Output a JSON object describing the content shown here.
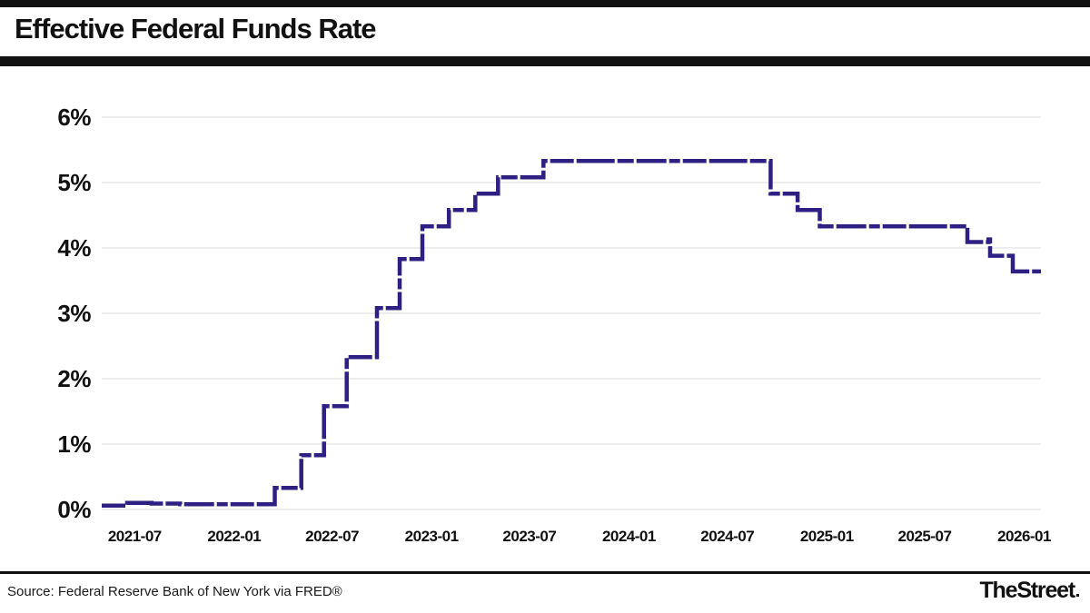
{
  "header": {
    "title": "Effective Federal Funds Rate"
  },
  "footer": {
    "source": "Source: Federal Reserve Bank of New York via FRED®",
    "brand": "TheStreet"
  },
  "chart_data": {
    "type": "line",
    "subtype": "step",
    "title": "Effective Federal Funds Rate",
    "xlabel": "",
    "ylabel": "",
    "unit": "%",
    "ylim": [
      0,
      6
    ],
    "grid": true,
    "legend": "none",
    "line_style": "dashed-thick",
    "colors": {
      "line": "#2d2082",
      "gridline": "#e7e7e7",
      "bars": "#111111",
      "text": "#111111"
    },
    "x_range": [
      "2021-05-01",
      "2026-02-01"
    ],
    "y_ticks": [
      {
        "value": 0,
        "label": "0%"
      },
      {
        "value": 1,
        "label": "1%"
      },
      {
        "value": 2,
        "label": "2%"
      },
      {
        "value": 3,
        "label": "3%"
      },
      {
        "value": 4,
        "label": "4%"
      },
      {
        "value": 5,
        "label": "5%"
      },
      {
        "value": 6,
        "label": "6%"
      }
    ],
    "x_ticks": [
      {
        "date": "2021-07-01",
        "label": "2021-07"
      },
      {
        "date": "2022-01-01",
        "label": "2022-01"
      },
      {
        "date": "2022-07-01",
        "label": "2022-07"
      },
      {
        "date": "2023-01-01",
        "label": "2023-01"
      },
      {
        "date": "2023-07-01",
        "label": "2023-07"
      },
      {
        "date": "2024-01-01",
        "label": "2024-01"
      },
      {
        "date": "2024-07-01",
        "label": "2024-07"
      },
      {
        "date": "2025-01-01",
        "label": "2025-01"
      },
      {
        "date": "2025-07-01",
        "label": "2025-07"
      },
      {
        "date": "2026-01-01",
        "label": "2026-01"
      }
    ],
    "series": [
      {
        "name": "Effective Federal Funds Rate",
        "color": "#2d2082",
        "points": [
          [
            "2021-05-01",
            0.06
          ],
          [
            "2021-06-17",
            0.1
          ],
          [
            "2021-08-01",
            0.09
          ],
          [
            "2021-09-23",
            0.08
          ],
          [
            "2022-03-17",
            0.33
          ],
          [
            "2022-05-05",
            0.83
          ],
          [
            "2022-06-16",
            1.58
          ],
          [
            "2022-07-28",
            2.33
          ],
          [
            "2022-09-22",
            3.08
          ],
          [
            "2022-11-03",
            3.83
          ],
          [
            "2022-12-15",
            4.33
          ],
          [
            "2023-02-02",
            4.58
          ],
          [
            "2023-03-23",
            4.83
          ],
          [
            "2023-05-04",
            5.08
          ],
          [
            "2023-07-27",
            5.33
          ],
          [
            "2024-09-19",
            4.83
          ],
          [
            "2024-11-08",
            4.58
          ],
          [
            "2024-12-19",
            4.33
          ],
          [
            "2025-09-18",
            4.09
          ],
          [
            "2025-10-27",
            4.13
          ],
          [
            "2025-10-30",
            3.88
          ],
          [
            "2025-12-11",
            3.64
          ],
          [
            "2026-01-30",
            3.64
          ]
        ]
      }
    ]
  }
}
